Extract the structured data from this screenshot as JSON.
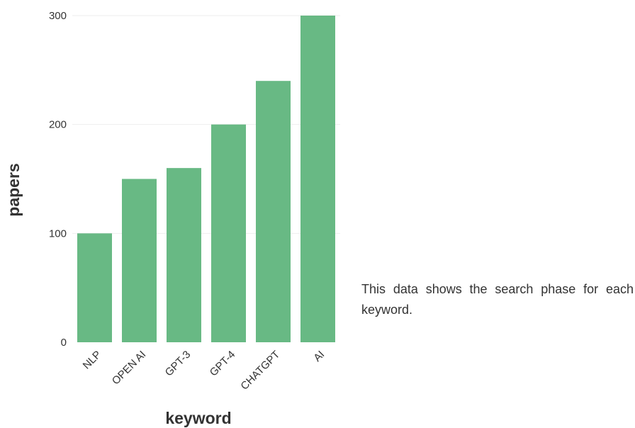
{
  "chart_data": {
    "type": "bar",
    "categories": [
      "NLP",
      "OPEN AI",
      "GPT-3",
      "GPT-4",
      "CHATGPT",
      "AI"
    ],
    "values": [
      100,
      150,
      160,
      200,
      240,
      300
    ],
    "xlabel": "keyword",
    "ylabel": "papers",
    "ylim": [
      0,
      300
    ],
    "yticks": [
      0,
      100,
      200,
      300
    ],
    "grid": true,
    "bar_color": "#68b984",
    "grid_color": "#eeeeee"
  },
  "caption": "This data shows the search phase for each keyword."
}
